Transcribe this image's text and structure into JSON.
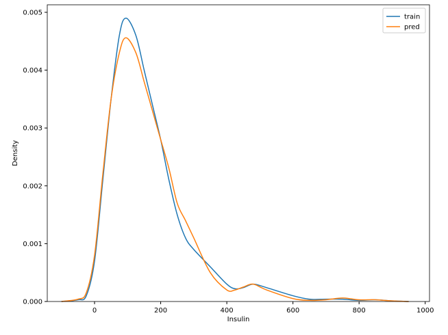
{
  "chart_data": {
    "type": "line",
    "xlabel": "Insulin",
    "ylabel": "Density",
    "x": [
      -100,
      -50,
      -25,
      0,
      25,
      50,
      75,
      95,
      125,
      150,
      175,
      200,
      225,
      250,
      275,
      300,
      350,
      400,
      425,
      450,
      480,
      520,
      600,
      650,
      700,
      750,
      800,
      850,
      900,
      950
    ],
    "series": [
      {
        "name": "train",
        "color": "#1f77b4",
        "values": [
          0,
          3e-05,
          0.0001,
          0.0007,
          0.0021,
          0.0035,
          0.0046,
          0.0049,
          0.0046,
          0.004,
          0.0034,
          0.0028,
          0.0021,
          0.0015,
          0.0011,
          0.0009,
          0.0006,
          0.0003,
          0.00022,
          0.00024,
          0.0003,
          0.00024,
          0.0001,
          4e-05,
          4e-05,
          4e-05,
          2e-05,
          3e-05,
          1e-05,
          0
        ]
      },
      {
        "name": "pred",
        "color": "#ff7f0e",
        "values": [
          0,
          4e-05,
          0.00015,
          0.0008,
          0.0022,
          0.0035,
          0.0043,
          0.00456,
          0.0043,
          0.0038,
          0.0033,
          0.0028,
          0.0023,
          0.0017,
          0.0014,
          0.0011,
          0.0005,
          0.0002,
          0.0002,
          0.00025,
          0.0003,
          0.0002,
          5e-05,
          2e-05,
          3e-05,
          6e-05,
          3e-05,
          3e-05,
          1e-05,
          0
        ]
      }
    ],
    "xlim": [
      -143,
      1013
    ],
    "ylim": [
      0,
      0.00513
    ],
    "xticks": [
      0,
      200,
      400,
      600,
      800,
      1000
    ],
    "yticks": [
      {
        "value": 0,
        "label": "0.000"
      },
      {
        "value": 0.001,
        "label": "0.001"
      },
      {
        "value": 0.002,
        "label": "0.002"
      },
      {
        "value": 0.003,
        "label": "0.003"
      },
      {
        "value": 0.004,
        "label": "0.004"
      },
      {
        "value": 0.005,
        "label": "0.005"
      }
    ],
    "legend": "upper-right"
  }
}
